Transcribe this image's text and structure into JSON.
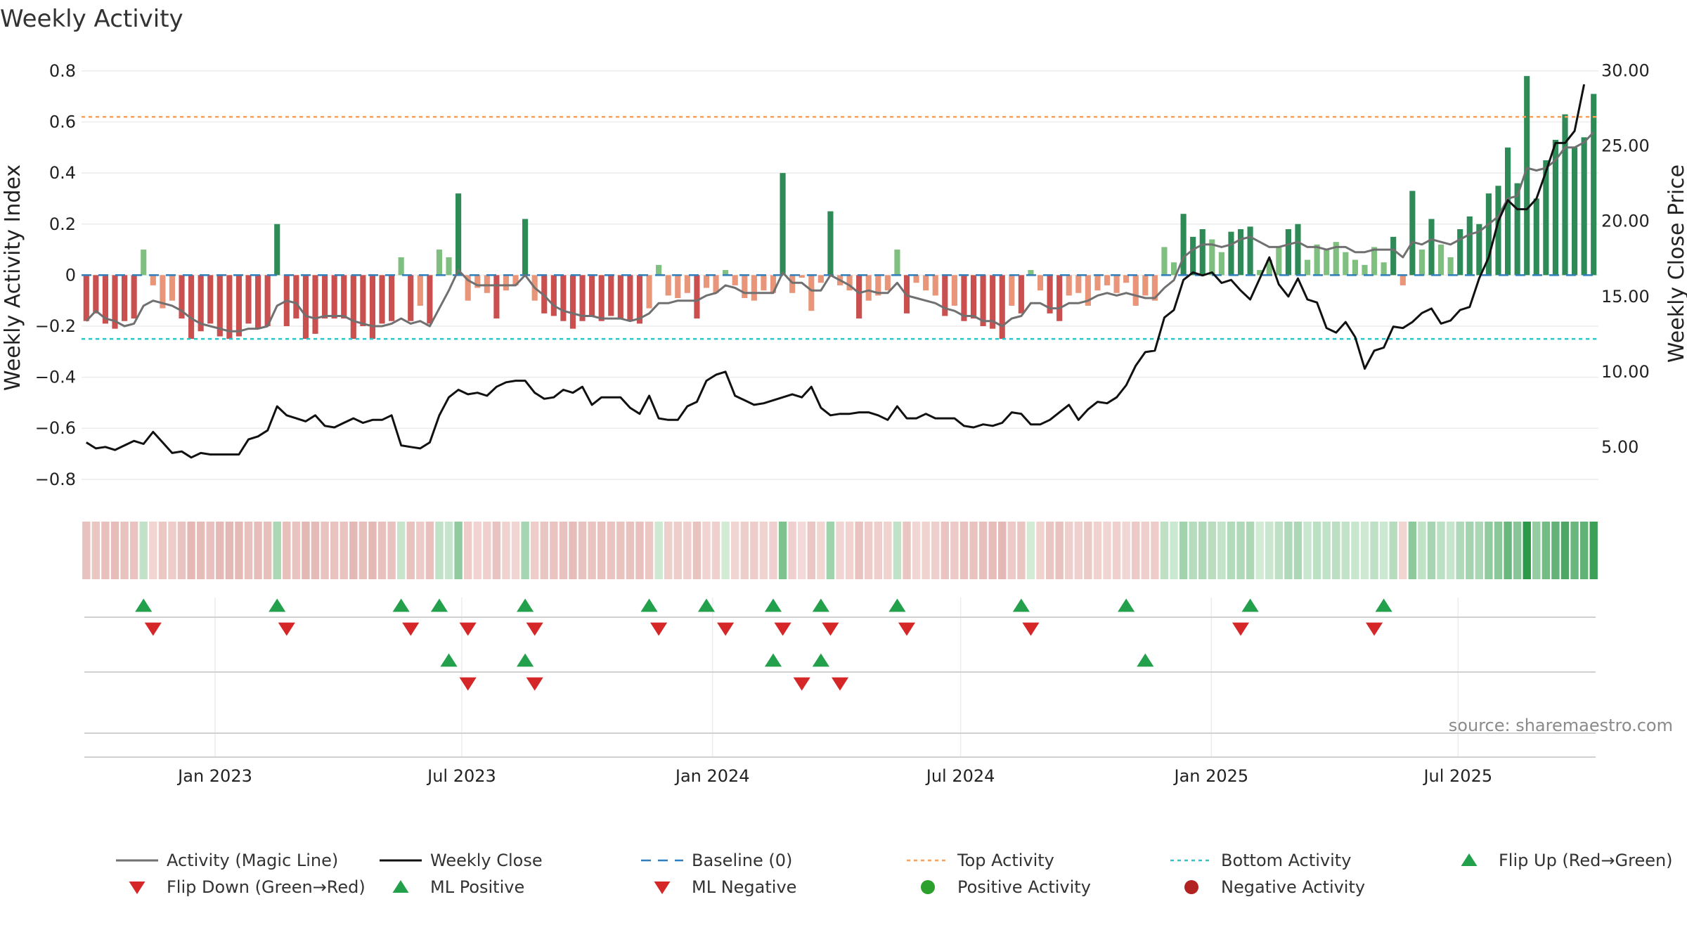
{
  "chart_data": {
    "type": "bar",
    "title": "Weekly Activity",
    "ylabel": "Weekly Activity Index",
    "y2label": "Weekly Close Price",
    "ylim": [
      -0.85,
      0.83
    ],
    "y2lim": [
      2.0,
      30.5
    ],
    "yticks": [
      0.8,
      0.6,
      0.4,
      0.2,
      0,
      -0.2,
      -0.4,
      -0.6,
      -0.8
    ],
    "yticks_labels": [
      "0.8",
      "0.6",
      "0.4",
      "0.2",
      "0",
      "−0.2",
      "−0.4",
      "−0.6",
      "−0.8"
    ],
    "y2ticks": [
      30,
      25,
      20,
      15,
      10,
      5
    ],
    "y2ticks_labels": [
      "30.00",
      "25.00",
      "20.00",
      "15.00",
      "10.00",
      "5.00"
    ],
    "x_start": "2022-09-25",
    "x_end": "2025-10-12",
    "xticks": [
      {
        "date": "2023-01-01",
        "label": "Jan 2023"
      },
      {
        "date": "2023-07-01",
        "label": "Jul 2023"
      },
      {
        "date": "2024-01-01",
        "label": "Jan 2024"
      },
      {
        "date": "2024-07-01",
        "label": "Jul 2024"
      },
      {
        "date": "2025-01-01",
        "label": "Jan 2025"
      },
      {
        "date": "2025-07-01",
        "label": "Jul 2025"
      }
    ],
    "top_activity": 0.62,
    "bottom_activity": -0.25,
    "baseline": 0,
    "activity": [
      -0.18,
      -0.15,
      -0.19,
      -0.21,
      -0.18,
      -0.17,
      0.1,
      -0.04,
      -0.13,
      -0.1,
      -0.17,
      -0.25,
      -0.22,
      -0.19,
      -0.24,
      -0.25,
      -0.24,
      -0.19,
      -0.21,
      -0.2,
      0.2,
      -0.2,
      -0.17,
      -0.25,
      -0.23,
      -0.17,
      -0.17,
      -0.17,
      -0.25,
      -0.2,
      -0.25,
      -0.19,
      -0.18,
      0.07,
      -0.18,
      -0.12,
      -0.19,
      0.1,
      0.07,
      0.32,
      -0.1,
      -0.05,
      -0.07,
      -0.17,
      -0.06,
      -0.04,
      0.22,
      -0.1,
      -0.15,
      -0.16,
      -0.18,
      -0.21,
      -0.18,
      -0.16,
      -0.18,
      -0.16,
      -0.17,
      -0.18,
      -0.19,
      -0.13,
      0.04,
      -0.08,
      -0.09,
      -0.07,
      -0.17,
      -0.05,
      -0.07,
      0.02,
      -0.04,
      -0.09,
      -0.1,
      -0.06,
      -0.07,
      0.4,
      -0.07,
      -0.01,
      -0.14,
      -0.03,
      0.25,
      -0.04,
      -0.06,
      -0.17,
      -0.1,
      -0.08,
      -0.06,
      0.1,
      -0.15,
      -0.03,
      -0.06,
      -0.08,
      -0.16,
      -0.12,
      -0.18,
      -0.17,
      -0.2,
      -0.21,
      -0.25,
      -0.12,
      -0.15,
      0.02,
      -0.06,
      -0.15,
      -0.18,
      -0.08,
      -0.07,
      -0.12,
      -0.06,
      -0.04,
      -0.07,
      -0.03,
      -0.12,
      -0.08,
      -0.1,
      0.11,
      0.05,
      0.24,
      0.15,
      0.18,
      0.14,
      0.09,
      0.17,
      0.18,
      0.19,
      0.02,
      0.06,
      0.11,
      0.18,
      0.2,
      0.06,
      0.12,
      0.1,
      0.13,
      0.09,
      0.06,
      0.04,
      0.11,
      0.05,
      0.15,
      -0.04,
      0.33,
      0.1,
      0.22,
      0.12,
      0.07,
      0.18,
      0.23,
      0.2,
      0.32,
      0.35,
      0.5,
      0.36,
      0.78,
      0.3,
      0.45,
      0.53,
      0.63,
      0.5,
      0.54,
      0.71
    ],
    "magic_line": [
      -0.18,
      -0.14,
      -0.17,
      -0.18,
      -0.2,
      -0.19,
      -0.12,
      -0.1,
      -0.11,
      -0.12,
      -0.14,
      -0.17,
      -0.19,
      -0.2,
      -0.21,
      -0.22,
      -0.22,
      -0.21,
      -0.21,
      -0.2,
      -0.12,
      -0.1,
      -0.11,
      -0.16,
      -0.17,
      -0.16,
      -0.16,
      -0.16,
      -0.18,
      -0.19,
      -0.2,
      -0.2,
      -0.19,
      -0.17,
      -0.19,
      -0.18,
      -0.2,
      -0.13,
      -0.06,
      0.02,
      -0.02,
      -0.04,
      -0.04,
      -0.04,
      -0.04,
      -0.04,
      0.0,
      -0.05,
      -0.08,
      -0.12,
      -0.14,
      -0.15,
      -0.16,
      -0.16,
      -0.17,
      -0.17,
      -0.17,
      -0.18,
      -0.17,
      -0.15,
      -0.11,
      -0.11,
      -0.1,
      -0.1,
      -0.1,
      -0.08,
      -0.07,
      -0.04,
      -0.05,
      -0.07,
      -0.07,
      -0.07,
      -0.07,
      0.01,
      -0.03,
      -0.03,
      -0.06,
      -0.06,
      0.0,
      -0.02,
      -0.04,
      -0.07,
      -0.06,
      -0.07,
      -0.07,
      -0.03,
      -0.08,
      -0.09,
      -0.1,
      -0.11,
      -0.13,
      -0.14,
      -0.16,
      -0.16,
      -0.18,
      -0.18,
      -0.2,
      -0.17,
      -0.16,
      -0.11,
      -0.11,
      -0.13,
      -0.13,
      -0.11,
      -0.11,
      -0.1,
      -0.08,
      -0.07,
      -0.08,
      -0.07,
      -0.08,
      -0.09,
      -0.09,
      -0.05,
      -0.02,
      0.07,
      0.1,
      0.12,
      0.12,
      0.11,
      0.12,
      0.14,
      0.15,
      0.13,
      0.11,
      0.11,
      0.12,
      0.13,
      0.11,
      0.11,
      0.1,
      0.11,
      0.11,
      0.09,
      0.09,
      0.1,
      0.1,
      0.1,
      0.07,
      0.13,
      0.12,
      0.14,
      0.13,
      0.12,
      0.14,
      0.16,
      0.17,
      0.2,
      0.23,
      0.3,
      0.31,
      0.42,
      0.41,
      0.42,
      0.45,
      0.5,
      0.5,
      0.52,
      0.56
    ],
    "weekly_close": [
      5.3,
      4.9,
      5.0,
      4.8,
      5.1,
      5.4,
      5.2,
      6.0,
      5.3,
      4.6,
      4.7,
      4.3,
      4.6,
      4.5,
      4.5,
      4.5,
      4.5,
      5.5,
      5.7,
      6.1,
      7.7,
      7.1,
      6.9,
      6.7,
      7.1,
      6.4,
      6.3,
      6.6,
      6.9,
      6.6,
      6.8,
      6.8,
      7.1,
      5.1,
      5.0,
      4.9,
      5.3,
      7.1,
      8.3,
      8.8,
      8.5,
      8.6,
      8.4,
      9.0,
      9.3,
      9.4,
      9.4,
      8.6,
      8.2,
      8.3,
      8.8,
      8.6,
      9.0,
      7.8,
      8.3,
      8.3,
      8.3,
      7.6,
      7.2,
      8.4,
      6.9,
      6.8,
      6.8,
      7.7,
      8.0,
      9.4,
      9.8,
      10.0,
      8.4,
      8.1,
      7.8,
      7.9,
      8.1,
      8.3,
      8.5,
      8.3,
      9.0,
      7.6,
      7.1,
      7.2,
      7.2,
      7.3,
      7.3,
      7.1,
      6.8,
      7.7,
      6.9,
      6.9,
      7.2,
      6.9,
      6.9,
      6.9,
      6.4,
      6.3,
      6.5,
      6.4,
      6.6,
      7.3,
      7.2,
      6.5,
      6.5,
      6.8,
      7.3,
      7.8,
      6.8,
      7.5,
      8.0,
      7.9,
      8.3,
      9.1,
      10.4,
      11.3,
      11.4,
      13.6,
      14.1,
      16.1,
      16.6,
      16.4,
      16.6,
      15.9,
      16.1,
      15.4,
      14.8,
      16.2,
      17.6,
      15.8,
      15.0,
      16.2,
      14.8,
      14.6,
      12.9,
      12.6,
      13.3,
      12.3,
      10.2,
      11.4,
      11.6,
      13.0,
      12.9,
      13.3,
      13.9,
      14.2,
      13.2,
      13.4,
      14.1,
      14.3,
      16.2,
      17.6,
      20.0,
      21.4,
      20.8,
      20.8,
      21.5,
      23.3,
      25.2,
      25.2,
      26.0,
      29.1
    ],
    "flip_up": [
      6,
      20,
      33,
      37,
      46,
      59,
      65,
      72,
      77,
      85,
      98,
      109,
      122,
      136
    ],
    "flip_down": [
      7,
      21,
      34,
      40,
      47,
      60,
      67,
      73,
      78,
      86,
      99,
      121,
      135
    ],
    "ml_positive": [
      38,
      46,
      72,
      77,
      111
    ],
    "ml_negative": [
      40,
      47,
      75,
      79
    ],
    "legend": [
      {
        "key": "magic",
        "label": "Activity (Magic Line)"
      },
      {
        "key": "close",
        "label": "Weekly Close"
      },
      {
        "key": "baseline",
        "label": "Baseline (0)"
      },
      {
        "key": "top",
        "label": "Top Activity"
      },
      {
        "key": "bottom",
        "label": "Bottom Activity"
      },
      {
        "key": "flipup",
        "label": "Flip Up (Red→Green)"
      },
      {
        "key": "flipdown",
        "label": "Flip Down (Green→Red)"
      },
      {
        "key": "mlpos",
        "label": "ML Positive"
      },
      {
        "key": "mlneg",
        "label": "ML Negative"
      },
      {
        "key": "posact",
        "label": "Positive Activity"
      },
      {
        "key": "negact",
        "label": "Negative Activity"
      }
    ]
  },
  "source_label": "source: sharemaestro.com",
  "colors": {
    "pos_dark": "#2e8b57",
    "pos_light": "#7fbf7f",
    "neg_dark": "#c9504e",
    "neg_light": "#e8957a",
    "magic": "#707070",
    "close": "#111111",
    "baseline": "#2f7fbf",
    "top": "#f4a261",
    "bottom": "#2ec4c9",
    "tri_up": "#22a04b",
    "tri_down": "#d62728",
    "dot_pos": "#2ca02c",
    "dot_neg": "#b22222"
  }
}
